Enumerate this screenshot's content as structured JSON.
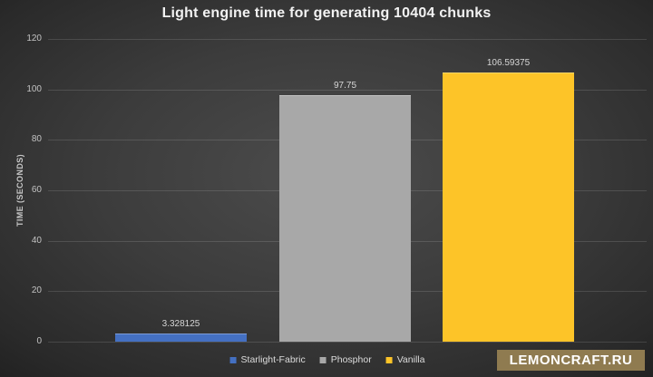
{
  "chart_data": {
    "type": "bar",
    "title": "Light engine time for generating 10404 chunks",
    "ylabel": "TIME (SECONDS)",
    "xlabel": "",
    "categories": [
      "Starlight-Fabric",
      "Phosphor",
      "Vanilla"
    ],
    "values": [
      3.328125,
      97.75,
      106.59375
    ],
    "value_labels": [
      "3.328125",
      "97.75",
      "106.59375"
    ],
    "colors": [
      "#4470c2",
      "#a8a8a8",
      "#fdc428"
    ],
    "ylim": [
      0,
      120
    ],
    "yticks": [
      0,
      20,
      40,
      60,
      80,
      100,
      120
    ],
    "grid": true,
    "legend_position": "bottom"
  },
  "watermark": {
    "label": "LEMONCRAFT.RU",
    "bg_color": "#8f7b50"
  },
  "theme": {
    "background_center": "#4c4c4c",
    "background_edge": "#1e1e1e",
    "title_color": "#f2f2f2",
    "axis_text_color": "#c3c3c3",
    "label_text_color": "#d6d6d6"
  }
}
